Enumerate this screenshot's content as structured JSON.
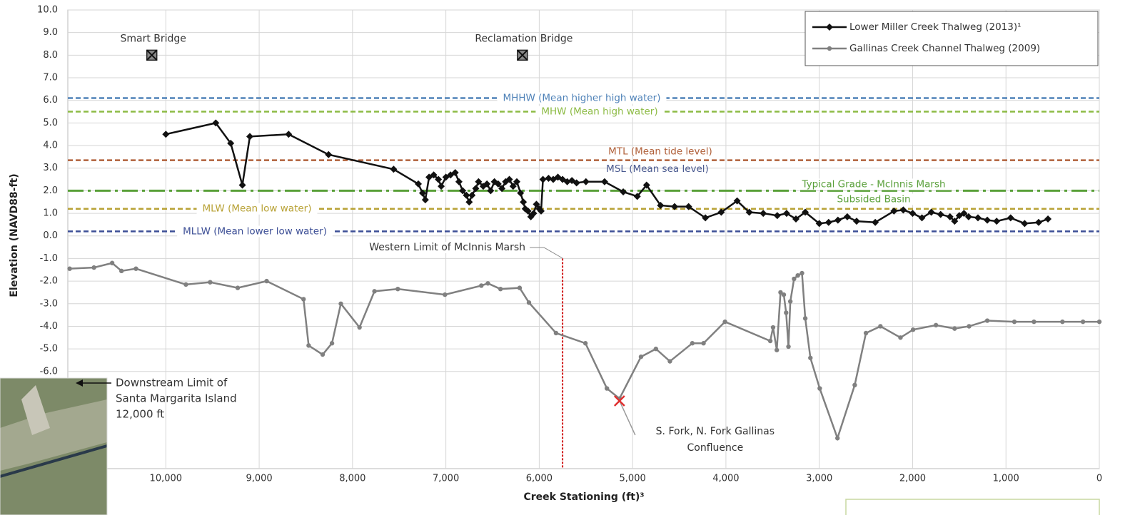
{
  "chart_data": {
    "type": "line",
    "x_label": "Creek Stationing (ft)³",
    "y_label": "Elevation (NAVD88-ft)",
    "xlim": [
      11050,
      0
    ],
    "ylim": [
      -10.3,
      10
    ],
    "grid": true,
    "legend": "top-right",
    "xticks": [
      {
        "value": 10000,
        "label": "10,000"
      },
      {
        "value": 9000,
        "label": "9,000"
      },
      {
        "value": 8000,
        "label": "8,000"
      },
      {
        "value": 7000,
        "label": "7,000"
      },
      {
        "value": 6000,
        "label": "6,000"
      },
      {
        "value": 5000,
        "label": "5,000"
      },
      {
        "value": 4000,
        "label": "4,000"
      },
      {
        "value": 3000,
        "label": "3,000"
      },
      {
        "value": 2000,
        "label": "2,000"
      },
      {
        "value": 1000,
        "label": "1,000"
      },
      0
    ],
    "yticks": [
      {
        "value": 10,
        "label": "10.0"
      },
      {
        "value": 9,
        "label": "9.0"
      },
      {
        "value": 8,
        "label": "8.0"
      },
      {
        "value": 7,
        "label": "7.0"
      },
      {
        "value": 6,
        "label": "6.0"
      },
      {
        "value": 5,
        "label": "5.0"
      },
      {
        "value": 4,
        "label": "4.0"
      },
      {
        "value": 3,
        "label": "3.0"
      },
      {
        "value": 2,
        "label": "2.0"
      },
      {
        "value": 1,
        "label": "1.0"
      },
      {
        "value": 0,
        "label": "0.0"
      },
      {
        "value": -1,
        "label": "-1.0"
      },
      {
        "value": -2,
        "label": "-2.0"
      },
      {
        "value": -3,
        "label": "-3.0"
      },
      {
        "value": -4,
        "label": "-4.0"
      },
      {
        "value": -5,
        "label": "-5.0"
      },
      {
        "value": -6,
        "label": "-6.0"
      }
    ],
    "series": [
      {
        "name": "Lower Miller Creek Thalweg (2013)¹",
        "color": "#111111",
        "marker": "diamond",
        "x": [
          10000,
          9465,
          9305,
          9180,
          9100,
          8685,
          8257,
          7560,
          7295,
          7250,
          7220,
          7180,
          7130,
          7080,
          7050,
          7000,
          6950,
          6900,
          6860,
          6820,
          6780,
          6750,
          6720,
          6680,
          6650,
          6600,
          6560,
          6520,
          6480,
          6440,
          6400,
          6360,
          6320,
          6280,
          6240,
          6200,
          6170,
          6150,
          6120,
          6090,
          6060,
          6030,
          6000,
          5980,
          5960,
          5900,
          5850,
          5800,
          5750,
          5700,
          5650,
          5600,
          5500,
          5300,
          5100,
          4950,
          4850,
          4700,
          4550,
          4400,
          4220,
          4050,
          3880,
          3750,
          3600,
          3450,
          3350,
          3250,
          3150,
          3000,
          2900,
          2800,
          2700,
          2600,
          2400,
          2200,
          2100,
          2000,
          1900,
          1800,
          1700,
          1600,
          1550,
          1500,
          1450,
          1400,
          1300,
          1200,
          1100,
          950,
          800,
          650,
          550
        ],
        "y": [
          4.5,
          5.0,
          4.1,
          2.25,
          4.4,
          4.5,
          3.6,
          2.95,
          2.3,
          1.9,
          1.6,
          2.6,
          2.7,
          2.5,
          2.2,
          2.6,
          2.7,
          2.8,
          2.4,
          2.0,
          1.8,
          1.5,
          1.8,
          2.1,
          2.4,
          2.2,
          2.3,
          2.0,
          2.4,
          2.3,
          2.1,
          2.4,
          2.5,
          2.2,
          2.4,
          1.9,
          1.5,
          1.2,
          1.1,
          0.85,
          1.0,
          1.4,
          1.2,
          1.1,
          2.5,
          2.55,
          2.5,
          2.6,
          2.5,
          2.4,
          2.45,
          2.35,
          2.4,
          2.4,
          1.95,
          1.75,
          2.25,
          1.35,
          1.3,
          1.3,
          0.8,
          1.05,
          1.55,
          1.05,
          1.0,
          0.9,
          1.0,
          0.75,
          1.05,
          0.55,
          0.6,
          0.7,
          0.85,
          0.65,
          0.6,
          1.1,
          1.15,
          1.0,
          0.8,
          1.05,
          0.95,
          0.85,
          0.65,
          0.9,
          1.0,
          0.85,
          0.8,
          0.7,
          0.65,
          0.8,
          0.55,
          0.6,
          0.75
        ]
      },
      {
        "name": "Gallinas Creek Channel Thalweg (2009)",
        "color": "#808080",
        "marker": "circle",
        "x": [
          11030,
          10770,
          10575,
          10475,
          10320,
          9785,
          9525,
          9230,
          8920,
          8525,
          8470,
          8320,
          8220,
          8125,
          7925,
          7765,
          7515,
          7010,
          6620,
          6550,
          6415,
          6210,
          6110,
          5820,
          5505,
          5275,
          5140,
          4910,
          4750,
          4600,
          4360,
          4240,
          4010,
          3525,
          3495,
          3455,
          3415,
          3380,
          3355,
          3330,
          3310,
          3270,
          3230,
          3185,
          3150,
          3095,
          2995,
          2805,
          2620,
          2500,
          2345,
          2130,
          1995,
          1750,
          1550,
          1395,
          1200,
          910,
          700,
          395,
          175,
          0
        ],
        "y": [
          -1.45,
          -1.4,
          -1.2,
          -1.55,
          -1.45,
          -2.15,
          -2.05,
          -2.3,
          -2.0,
          -2.8,
          -4.85,
          -5.25,
          -4.75,
          -3.0,
          -4.05,
          -2.45,
          -2.35,
          -2.6,
          -2.2,
          -2.1,
          -2.35,
          -2.3,
          -2.95,
          -4.3,
          -4.75,
          -6.75,
          -7.2,
          -5.35,
          -5.0,
          -5.55,
          -4.75,
          -4.75,
          -3.8,
          -4.65,
          -4.05,
          -5.05,
          -2.5,
          -2.6,
          -3.4,
          -4.9,
          -2.9,
          -1.9,
          -1.75,
          -1.65,
          -3.65,
          -5.4,
          -6.75,
          -8.95,
          -6.6,
          -4.3,
          -4.0,
          -4.5,
          -4.15,
          -3.95,
          -4.1,
          -4.0,
          -3.75,
          -3.8,
          -3.8,
          -3.8,
          -3.8,
          -3.8
        ]
      }
    ],
    "reference_lines": [
      {
        "label": [
          "MHHW (Mean higher high water)"
        ],
        "value": 6.1,
        "color": "#4f82b8",
        "style": "dashed"
      },
      {
        "label": [
          "MHW (Mean high water)"
        ],
        "value": 5.5,
        "color": "#8dbb45",
        "style": "dashed"
      },
      {
        "label": [
          "MTL (Mean tide level)"
        ],
        "value": 3.35,
        "color": "#b0603a",
        "style": "dashed"
      },
      {
        "label": [
          "Typical Grade - McInnis Marsh",
          "Subsided Basin"
        ],
        "value": 2.0,
        "color": "#5aa03a",
        "style": "dashdot"
      },
      {
        "label": [
          "MLW (Mean low water)"
        ],
        "value": 1.2,
        "color": "#b8a236",
        "style": "dashed"
      },
      {
        "label": [
          "MLLW (Mean lower low water)"
        ],
        "value": 0.2,
        "color": "#3d4f96",
        "style": "dashed"
      }
    ],
    "notes": [
      {
        "text": "MSL (Mean sea level)",
        "color": "#4a5a90"
      }
    ],
    "vlines": [
      {
        "x": 5750,
        "label": "Western Limit of McInnis Marsh",
        "color": "#d01818"
      }
    ],
    "points": [
      {
        "label": [
          "Smart Bridge"
        ],
        "x": 10150,
        "y": 8.0,
        "shape": "bridge"
      },
      {
        "label": [
          "Reclamation Bridge"
        ],
        "x": 6180,
        "y": 8.0,
        "shape": "bridge"
      },
      {
        "label": [
          "S. Fork, N. Fork Gallinas",
          "Confluence"
        ],
        "x": 5140,
        "y": -7.3,
        "shape": "cross",
        "color": "#e03030"
      }
    ],
    "callout": [
      "Downstream Limit of",
      "Santa Margarita Island",
      "12,000 ft"
    ]
  }
}
